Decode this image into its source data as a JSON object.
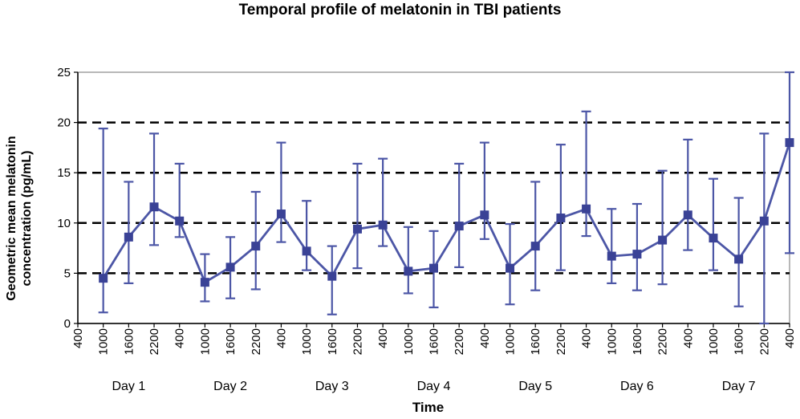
{
  "chart_data": {
    "type": "line",
    "title": "Temporal profile of melatonin in TBI patients",
    "xlabel": "Time",
    "ylabel_lines": [
      "Geometric mean melatonin",
      "concentration (pg/mL)"
    ],
    "ylim": [
      0,
      25
    ],
    "yticks": [
      0,
      5,
      10,
      15,
      20,
      25
    ],
    "gridlines": [
      5,
      10,
      15,
      20
    ],
    "x_ticks": [
      "400",
      "1000",
      "1600",
      "2200",
      "400",
      "1000",
      "1600",
      "2200",
      "400",
      "1000",
      "1600",
      "2200",
      "400",
      "1000",
      "1600",
      "2200",
      "400",
      "1000",
      "1600",
      "2200",
      "400",
      "1000",
      "1600",
      "2200",
      "400",
      "1000",
      "1600",
      "2200",
      "400"
    ],
    "day_labels": [
      "Day 1",
      "Day 2",
      "Day 3",
      "Day 4",
      "Day 5",
      "Day 6",
      "Day 7"
    ],
    "series": [
      {
        "name": "Geometric mean melatonin",
        "color": "#4c56a6",
        "points": [
          {
            "x": "1000",
            "y": 4.5,
            "lo": 1.1,
            "hi": 19.4
          },
          {
            "x": "1600",
            "y": 8.6,
            "lo": 4.0,
            "hi": 14.1
          },
          {
            "x": "2200",
            "y": 11.6,
            "lo": 7.8,
            "hi": 18.9
          },
          {
            "x": "400",
            "y": 10.2,
            "lo": 8.6,
            "hi": 15.9
          },
          {
            "x": "1000",
            "y": 4.1,
            "lo": 2.2,
            "hi": 6.9
          },
          {
            "x": "1600",
            "y": 5.6,
            "lo": 2.5,
            "hi": 8.6
          },
          {
            "x": "2200",
            "y": 7.7,
            "lo": 3.4,
            "hi": 13.1
          },
          {
            "x": "400",
            "y": 10.9,
            "lo": 8.1,
            "hi": 18.0
          },
          {
            "x": "1000",
            "y": 7.2,
            "lo": 5.3,
            "hi": 12.2
          },
          {
            "x": "1600",
            "y": 4.7,
            "lo": 0.9,
            "hi": 7.7
          },
          {
            "x": "2200",
            "y": 9.4,
            "lo": 5.5,
            "hi": 15.9
          },
          {
            "x": "400",
            "y": 9.8,
            "lo": 7.7,
            "hi": 16.4
          },
          {
            "x": "1000",
            "y": 5.2,
            "lo": 3.0,
            "hi": 9.6
          },
          {
            "x": "1600",
            "y": 5.5,
            "lo": 1.6,
            "hi": 9.2
          },
          {
            "x": "2200",
            "y": 9.7,
            "lo": 5.6,
            "hi": 15.9
          },
          {
            "x": "400",
            "y": 10.8,
            "lo": 8.4,
            "hi": 18.0
          },
          {
            "x": "1000",
            "y": 5.5,
            "lo": 1.9,
            "hi": 9.9
          },
          {
            "x": "1600",
            "y": 7.7,
            "lo": 3.3,
            "hi": 14.1
          },
          {
            "x": "2200",
            "y": 10.5,
            "lo": 5.3,
            "hi": 17.8
          },
          {
            "x": "400",
            "y": 11.4,
            "lo": 8.7,
            "hi": 21.1
          },
          {
            "x": "1000",
            "y": 6.7,
            "lo": 4.0,
            "hi": 11.4
          },
          {
            "x": "1600",
            "y": 6.9,
            "lo": 3.3,
            "hi": 11.9
          },
          {
            "x": "2200",
            "y": 8.3,
            "lo": 3.9,
            "hi": 15.2
          },
          {
            "x": "400",
            "y": 10.8,
            "lo": 7.3,
            "hi": 18.3
          },
          {
            "x": "1000",
            "y": 8.5,
            "lo": 5.3,
            "hi": 14.4
          },
          {
            "x": "1600",
            "y": 6.4,
            "lo": 1.7,
            "hi": 12.5
          },
          {
            "x": "2200",
            "y": 10.2,
            "lo": 0.0,
            "hi": 18.9
          },
          {
            "x": "400",
            "y": 18.0,
            "lo": 7.0,
            "hi": 25.0
          }
        ]
      }
    ]
  }
}
